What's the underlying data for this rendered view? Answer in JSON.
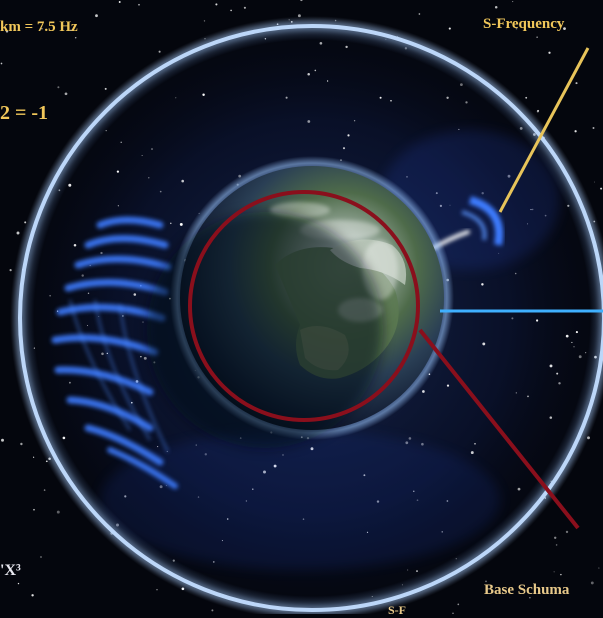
{
  "labels": {
    "formula_top": "km = 7.5 Hz",
    "formula_mid": "2 = -1",
    "formula_bottom": "'X³",
    "s_frequency": "S-Frequency",
    "base_schumann": "Base Schuma",
    "bottom_partial": "S-F"
  },
  "colors": {
    "background": "#04060d",
    "outer_ring": "#cfe4ff",
    "red_ring": "#8a0f1c",
    "blue_line": "#3fb0ff",
    "yellow_line": "#e8c45a",
    "wave_blue": "#3e7bff"
  }
}
